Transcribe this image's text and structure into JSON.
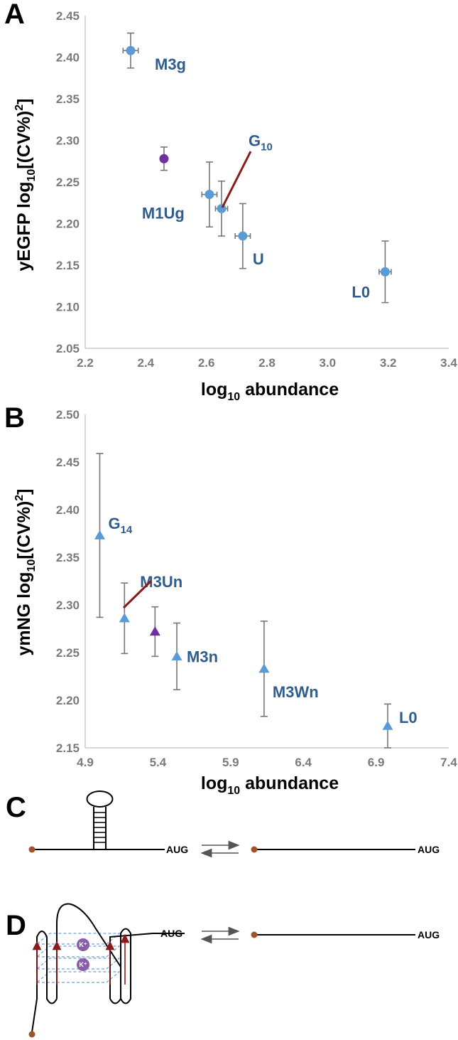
{
  "panels": {
    "a": "A",
    "b": "B",
    "c": "C",
    "d": "D"
  },
  "chart_data": [
    {
      "type": "scatter",
      "panel": "A",
      "title": "",
      "xlabel": {
        "main": "log",
        "sub": "10",
        "rest": " abundance"
      },
      "ylabel": {
        "pre": "yEGFP log",
        "sub": "10",
        "mid": "[(CV%)",
        "sup": "2",
        "post": "]"
      },
      "xlim": [
        2.2,
        3.4
      ],
      "ylim": [
        2.05,
        2.45
      ],
      "xticks": [
        "2.2",
        "2.4",
        "2.6",
        "2.8",
        "3.0",
        "3.2",
        "3.4"
      ],
      "yticks": [
        "2.05",
        "2.10",
        "2.15",
        "2.20",
        "2.25",
        "2.30",
        "2.35",
        "2.40",
        "2.45"
      ],
      "marker": "circle",
      "points": [
        {
          "label": "M3g",
          "sub": "",
          "x": 2.35,
          "y": 2.408,
          "xerr": 0.025,
          "yerr": 0.021,
          "color": "#5b9bd5"
        },
        {
          "label": "",
          "sub": "",
          "x": 2.46,
          "y": 2.278,
          "xerr": 0.01,
          "yerr": 0.014,
          "color": "#7030a0"
        },
        {
          "label": "M1Ug",
          "sub": "",
          "x": 2.61,
          "y": 2.235,
          "xerr": 0.025,
          "yerr": 0.039,
          "color": "#5b9bd5"
        },
        {
          "label": "G",
          "sub": "10",
          "x": 2.65,
          "y": 2.218,
          "xerr": 0.02,
          "yerr": 0.033,
          "color": "#5b9bd5"
        },
        {
          "label": "U",
          "sub": "",
          "x": 2.72,
          "y": 2.185,
          "xerr": 0.025,
          "yerr": 0.039,
          "color": "#5b9bd5"
        },
        {
          "label": "L0",
          "sub": "",
          "x": 3.19,
          "y": 2.142,
          "xerr": 0.02,
          "yerr": 0.037,
          "color": "#5b9bd5"
        }
      ]
    },
    {
      "type": "scatter",
      "panel": "B",
      "title": "",
      "xlabel": {
        "main": "log",
        "sub": "10",
        "rest": " abundance"
      },
      "ylabel": {
        "pre": "ymNG log",
        "sub": "10",
        "mid": "[(CV%)",
        "sup": "2",
        "post": "]"
      },
      "xlim": [
        4.9,
        7.4
      ],
      "ylim": [
        2.15,
        2.5
      ],
      "xticks": [
        "4.9",
        "5.4",
        "5.9",
        "6.4",
        "6.9",
        "7.4"
      ],
      "yticks": [
        "2.15",
        "2.20",
        "2.25",
        "2.30",
        "2.35",
        "2.40",
        "2.45",
        "2.50"
      ],
      "marker": "triangle",
      "points": [
        {
          "label": "G",
          "sub": "14",
          "x": 5.0,
          "y": 2.373,
          "xerr": 0,
          "yerr": 0.086,
          "color": "#5b9bd5"
        },
        {
          "label": "M3Un",
          "sub": "",
          "x": 5.17,
          "y": 2.286,
          "xerr": 0,
          "yerr": 0.037,
          "color": "#5b9bd5"
        },
        {
          "label": "",
          "sub": "",
          "x": 5.38,
          "y": 2.272,
          "xerr": 0,
          "yerr": 0.026,
          "color": "#7030a0"
        },
        {
          "label": "M3n",
          "sub": "",
          "x": 5.53,
          "y": 2.246,
          "xerr": 0,
          "yerr": 0.035,
          "color": "#5b9bd5"
        },
        {
          "label": "M3Wn",
          "sub": "",
          "x": 6.13,
          "y": 2.233,
          "xerr": 0,
          "yerr": 0.05,
          "color": "#5b9bd5"
        },
        {
          "label": "L0",
          "sub": "",
          "x": 6.98,
          "y": 2.173,
          "xerr": 0,
          "yerr": 0.023,
          "color": "#5b9bd5"
        }
      ]
    }
  ],
  "diagram_c": {
    "aug_left": "AUG",
    "aug_right": "AUG"
  },
  "diagram_d": {
    "aug_left": "AUG",
    "aug_right": "AUG",
    "ion1": "K⁺",
    "ion2": "K⁺"
  }
}
